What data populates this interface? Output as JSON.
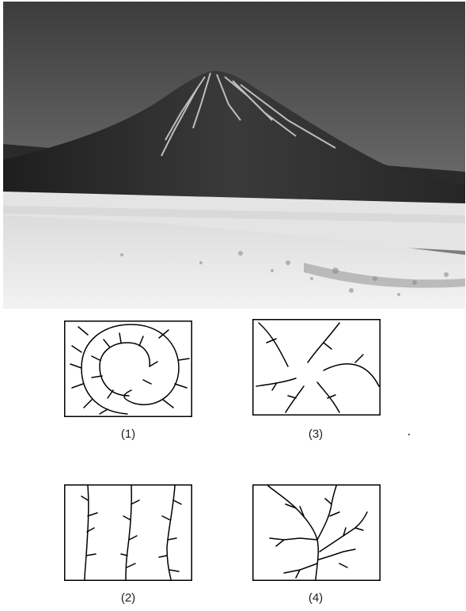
{
  "photo": {
    "subject_icon": "volcano-mountain-photo",
    "palette": {
      "sky": "#5a5a5a",
      "mountain": "#2e2e2e",
      "snow": "#d8d8d8",
      "lake": "#e6e6e6",
      "shore": "#f0f0f0"
    }
  },
  "panels": [
    {
      "id": "p1",
      "caption": "(1)",
      "pattern": "annular"
    },
    {
      "id": "p3",
      "caption": "(3)",
      "pattern": "centripetal"
    },
    {
      "id": "p2",
      "caption": "(2)",
      "pattern": "parallel"
    },
    {
      "id": "p4",
      "caption": "(4)",
      "pattern": "dendritic"
    }
  ]
}
